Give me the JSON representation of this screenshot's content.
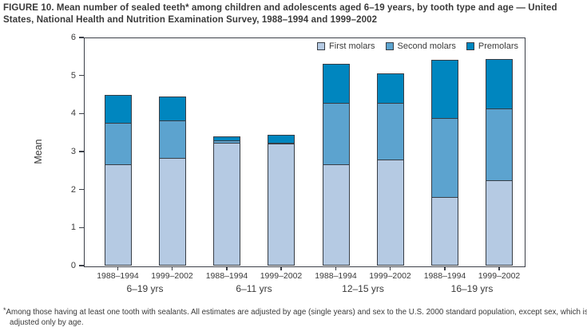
{
  "title": "FIGURE 10. Mean number of sealed teeth* among children and adolescents aged 6–19 years, by tooth type and age — United States, National Health and Nutrition Examination Survey, 1988–1994 and 1999–2002",
  "footnote_marker": "*",
  "footnote": "Among those having at least one tooth with sealants. All estimates are adjusted by age (single years) and sex to the U.S. 2000 standard population, except sex, which is adjusted only by age.",
  "colors": {
    "first_molars": "#b5cae3",
    "second_molars": "#5ca3cf",
    "premolars": "#0086bf",
    "bar_border": "#383e46",
    "axis": "#3c4048",
    "text": "#3a3a3a"
  },
  "chart_data": {
    "type": "bar",
    "stacked": true,
    "ylabel": "Mean",
    "ylim": [
      0,
      6
    ],
    "ytick_step": 1,
    "yticks": [
      0,
      1,
      2,
      3,
      4,
      5,
      6
    ],
    "grid": false,
    "legend_position": "top-right-inside",
    "series_names": [
      "First molars",
      "Second molars",
      "Premolars"
    ],
    "series_colors": [
      "#b5cae3",
      "#5ca3cf",
      "#0086bf"
    ],
    "groups": [
      {
        "label": "6–19 yrs",
        "bars": [
          {
            "period": "1988–1994",
            "values": [
              2.67,
              1.08,
              0.74
            ],
            "total": 4.49
          },
          {
            "period": "1999–2002",
            "values": [
              2.84,
              0.97,
              0.63
            ],
            "total": 4.44
          }
        ]
      },
      {
        "label": "6–11 yrs",
        "bars": [
          {
            "period": "1988–1994",
            "values": [
              3.24,
              0.05,
              0.11
            ],
            "total": 3.4
          },
          {
            "period": "1999–2002",
            "values": [
              3.21,
              0.02,
              0.22
            ],
            "total": 3.45
          }
        ]
      },
      {
        "label": "12–15 yrs",
        "bars": [
          {
            "period": "1988–1994",
            "values": [
              2.66,
              1.62,
              1.02
            ],
            "total": 5.3
          },
          {
            "period": "1999–2002",
            "values": [
              2.8,
              1.49,
              0.77
            ],
            "total": 5.06
          }
        ]
      },
      {
        "label": "16–19 yrs",
        "bars": [
          {
            "period": "1988–1994",
            "values": [
              1.8,
              2.09,
              1.53
            ],
            "total": 5.42
          },
          {
            "period": "1999–2002",
            "values": [
              2.24,
              1.9,
              1.3
            ],
            "total": 5.44
          }
        ]
      }
    ]
  }
}
